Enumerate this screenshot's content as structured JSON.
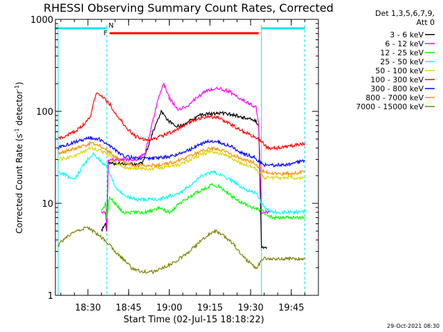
{
  "chart_data": {
    "type": "line",
    "title": "RHESSI Observing Summary Count Rates, Corrected",
    "xlabel": "Start Time (02-Jul-15 18:18:22)",
    "ylabel_main": "Corrected Count Rate (s",
    "ylabel_sup1": "-1",
    "ylabel_mid": " detector",
    "ylabel_sup2": "-1",
    "ylabel_end": ")",
    "y_scale": "log",
    "ylim": [
      1,
      1000
    ],
    "y_ticks": [
      {
        "value": 1,
        "label": "1"
      },
      {
        "value": 10,
        "label": "10"
      },
      {
        "value": 100,
        "label": "100"
      },
      {
        "value": 1000,
        "label": "1000"
      }
    ],
    "xlim": [
      "18:18",
      "19:55"
    ],
    "x_ticks": [
      "18:30",
      "18:45",
      "19:00",
      "19:15",
      "19:30",
      "19:45"
    ],
    "legend_header": [
      "Det 1,3,5,6,7,9,",
      "Att 0"
    ],
    "legend_placement": "right",
    "flags": [
      {
        "label": "N",
        "color": "#00e5ee",
        "segments": [
          [
            "18:18",
            "18:37"
          ],
          [
            "19:34",
            "19:50"
          ]
        ]
      },
      {
        "label": "F",
        "color": "#ff0000",
        "segments": [
          [
            "18:38",
            "19:33"
          ]
        ]
      }
    ],
    "vertical_markers": [
      {
        "time": "18:37",
        "style": "dashed",
        "color": "#00e5ee"
      },
      {
        "time": "19:34",
        "style": "solid",
        "color": "#00e5ee"
      },
      {
        "time": "19:50",
        "style": "dashed",
        "color": "#00e5ee"
      },
      {
        "time": "18:19",
        "style": "solid",
        "color": "#00e5ee"
      }
    ],
    "series": [
      {
        "name": "3 - 6 keV",
        "color": "#000000",
        "points": [
          [
            "18:35",
            5
          ],
          [
            "18:36.5",
            6
          ],
          [
            "18:37",
            5
          ],
          [
            "18:37.5",
            28
          ],
          [
            "18:40",
            27
          ],
          [
            "18:45",
            27
          ],
          [
            "18:50",
            27
          ],
          [
            "18:52",
            40
          ],
          [
            "18:54",
            60
          ],
          [
            "18:57",
            100
          ],
          [
            "19:00",
            78
          ],
          [
            "19:02",
            70
          ],
          [
            "19:05",
            70
          ],
          [
            "19:08",
            80
          ],
          [
            "19:12",
            92
          ],
          [
            "19:16",
            95
          ],
          [
            "19:20",
            95
          ],
          [
            "19:24",
            92
          ],
          [
            "19:28",
            85
          ],
          [
            "19:32",
            78
          ],
          [
            "19:33",
            70
          ],
          [
            "19:34",
            3.3
          ],
          [
            "19:36",
            3.3
          ]
        ]
      },
      {
        "name": "6 - 12 keV",
        "color": "#ff00ff",
        "points": [
          [
            "18:35",
            8
          ],
          [
            "18:36.5",
            8
          ],
          [
            "18:37",
            5
          ],
          [
            "18:37.5",
            30
          ],
          [
            "18:40",
            30
          ],
          [
            "18:44",
            30
          ],
          [
            "18:48",
            30
          ],
          [
            "18:51",
            35
          ],
          [
            "18:53",
            60
          ],
          [
            "18:56",
            140
          ],
          [
            "18:58",
            200
          ],
          [
            "19:00",
            140
          ],
          [
            "19:03",
            105
          ],
          [
            "19:06",
            110
          ],
          [
            "19:10",
            140
          ],
          [
            "19:14",
            170
          ],
          [
            "19:18",
            180
          ],
          [
            "19:22",
            165
          ],
          [
            "19:26",
            140
          ],
          [
            "19:30",
            120
          ],
          [
            "19:32",
            110
          ],
          [
            "19:33",
            70
          ],
          [
            "19:34",
            8
          ],
          [
            "19:37",
            8
          ]
        ]
      },
      {
        "name": "12 - 25 keV",
        "color": "#00ff00",
        "points": [
          [
            "18:35",
            8
          ],
          [
            "18:36.5",
            10
          ],
          [
            "18:37",
            7
          ],
          [
            "18:38",
            12
          ],
          [
            "18:40",
            10
          ],
          [
            "18:43",
            8
          ],
          [
            "18:47",
            8
          ],
          [
            "18:52",
            8
          ],
          [
            "18:56",
            9
          ],
          [
            "19:00",
            8
          ],
          [
            "19:04",
            10
          ],
          [
            "19:08",
            12
          ],
          [
            "19:12",
            14
          ],
          [
            "19:16",
            16
          ],
          [
            "19:19",
            15
          ],
          [
            "19:23",
            12
          ],
          [
            "19:27",
            10
          ],
          [
            "19:31",
            9
          ],
          [
            "19:35",
            8
          ],
          [
            "19:38",
            7
          ],
          [
            "19:42",
            7
          ],
          [
            "19:46",
            7
          ],
          [
            "19:50",
            7
          ]
        ]
      },
      {
        "name": "25 - 50 keV",
        "color": "#00ffff",
        "points": [
          [
            "18:19",
            22
          ],
          [
            "18:22",
            20
          ],
          [
            "18:25",
            18
          ],
          [
            "18:28",
            25
          ],
          [
            "18:30",
            30
          ],
          [
            "18:32",
            35
          ],
          [
            "18:34",
            30
          ],
          [
            "18:37",
            25
          ],
          [
            "18:39",
            18
          ],
          [
            "18:41",
            14
          ],
          [
            "18:44",
            12
          ],
          [
            "18:48",
            11
          ],
          [
            "18:52",
            11
          ],
          [
            "18:56",
            11
          ],
          [
            "19:00",
            12
          ],
          [
            "19:04",
            13
          ],
          [
            "19:08",
            16
          ],
          [
            "19:12",
            20
          ],
          [
            "19:16",
            22
          ],
          [
            "19:20",
            20
          ],
          [
            "19:24",
            17
          ],
          [
            "19:28",
            14
          ],
          [
            "19:32",
            13
          ],
          [
            "19:35",
            9
          ],
          [
            "19:38",
            8
          ],
          [
            "19:42",
            8
          ],
          [
            "19:46",
            8
          ],
          [
            "19:50",
            8
          ]
        ]
      },
      {
        "name": "50 - 100 keV",
        "color": "#d8d800",
        "points": [
          [
            "18:19",
            30
          ],
          [
            "18:22",
            31
          ],
          [
            "18:25",
            33
          ],
          [
            "18:28",
            36
          ],
          [
            "18:31",
            40
          ],
          [
            "18:34",
            38
          ],
          [
            "18:37",
            35
          ],
          [
            "18:40",
            28
          ],
          [
            "18:43",
            25
          ],
          [
            "18:47",
            24
          ],
          [
            "18:51",
            24
          ],
          [
            "18:55",
            24
          ],
          [
            "18:59",
            25
          ],
          [
            "19:03",
            26
          ],
          [
            "19:07",
            29
          ],
          [
            "19:11",
            33
          ],
          [
            "19:15",
            37
          ],
          [
            "19:19",
            35
          ],
          [
            "19:23",
            31
          ],
          [
            "19:27",
            27
          ],
          [
            "19:31",
            25
          ],
          [
            "19:35",
            19
          ],
          [
            "19:40",
            19
          ],
          [
            "19:45",
            19
          ],
          [
            "19:50",
            19
          ]
        ]
      },
      {
        "name": "100 - 300 keV",
        "color": "#ff0000",
        "points": [
          [
            "18:19",
            50
          ],
          [
            "18:22",
            55
          ],
          [
            "18:25",
            60
          ],
          [
            "18:28",
            70
          ],
          [
            "18:31",
            90
          ],
          [
            "18:33",
            160
          ],
          [
            "18:35",
            150
          ],
          [
            "18:38",
            120
          ],
          [
            "18:41",
            90
          ],
          [
            "18:44",
            68
          ],
          [
            "18:47",
            55
          ],
          [
            "18:50",
            50
          ],
          [
            "18:54",
            50
          ],
          [
            "18:58",
            55
          ],
          [
            "19:02",
            62
          ],
          [
            "19:06",
            72
          ],
          [
            "19:10",
            82
          ],
          [
            "19:14",
            88
          ],
          [
            "19:18",
            85
          ],
          [
            "19:22",
            75
          ],
          [
            "19:26",
            63
          ],
          [
            "19:30",
            55
          ],
          [
            "19:34",
            48
          ],
          [
            "19:36",
            40
          ],
          [
            "19:40",
            40
          ],
          [
            "19:45",
            42
          ],
          [
            "19:50",
            45
          ]
        ]
      },
      {
        "name": "300 - 800 keV",
        "color": "#0000ff",
        "points": [
          [
            "18:19",
            40
          ],
          [
            "18:22",
            43
          ],
          [
            "18:25",
            46
          ],
          [
            "18:28",
            49
          ],
          [
            "18:31",
            52
          ],
          [
            "18:34",
            50
          ],
          [
            "18:37",
            45
          ],
          [
            "18:40",
            38
          ],
          [
            "18:43",
            33
          ],
          [
            "18:47",
            31
          ],
          [
            "18:51",
            31
          ],
          [
            "18:55",
            31
          ],
          [
            "18:59",
            32
          ],
          [
            "19:03",
            34
          ],
          [
            "19:07",
            38
          ],
          [
            "19:11",
            43
          ],
          [
            "19:15",
            48
          ],
          [
            "19:19",
            46
          ],
          [
            "19:23",
            41
          ],
          [
            "19:27",
            35
          ],
          [
            "19:31",
            32
          ],
          [
            "19:35",
            26
          ],
          [
            "19:40",
            26
          ],
          [
            "19:45",
            27
          ],
          [
            "19:50",
            29
          ]
        ]
      },
      {
        "name": "800 - 7000 keV",
        "color": "#ff8c00",
        "points": [
          [
            "18:19",
            35
          ],
          [
            "18:22",
            37
          ],
          [
            "18:25",
            39
          ],
          [
            "18:28",
            42
          ],
          [
            "18:31",
            45
          ],
          [
            "18:34",
            43
          ],
          [
            "18:37",
            38
          ],
          [
            "18:40",
            32
          ],
          [
            "18:43",
            28
          ],
          [
            "18:47",
            26
          ],
          [
            "18:51",
            26
          ],
          [
            "18:55",
            26
          ],
          [
            "18:59",
            27
          ],
          [
            "19:03",
            29
          ],
          [
            "19:07",
            32
          ],
          [
            "19:11",
            36
          ],
          [
            "19:15",
            40
          ],
          [
            "19:19",
            38
          ],
          [
            "19:23",
            34
          ],
          [
            "19:27",
            30
          ],
          [
            "19:31",
            28
          ],
          [
            "19:35",
            22
          ],
          [
            "19:40",
            21
          ],
          [
            "19:45",
            21
          ],
          [
            "19:50",
            22
          ]
        ]
      },
      {
        "name": "7000 - 15000 keV",
        "color": "#808000",
        "points": [
          [
            "18:19",
            3.5
          ],
          [
            "18:21",
            4
          ],
          [
            "18:23",
            4.5
          ],
          [
            "18:26",
            5
          ],
          [
            "18:29",
            5.5
          ],
          [
            "18:32",
            5
          ],
          [
            "18:34",
            4.5
          ],
          [
            "18:36",
            4
          ],
          [
            "18:38",
            3.5
          ],
          [
            "18:40",
            3
          ],
          [
            "18:43",
            2.5
          ],
          [
            "18:46",
            2
          ],
          [
            "18:50",
            1.8
          ],
          [
            "18:54",
            1.8
          ],
          [
            "18:58",
            2
          ],
          [
            "19:02",
            2.3
          ],
          [
            "19:06",
            2.8
          ],
          [
            "19:10",
            3.5
          ],
          [
            "19:14",
            4.5
          ],
          [
            "19:17",
            5
          ],
          [
            "19:20",
            4.5
          ],
          [
            "19:24",
            3.5
          ],
          [
            "19:28",
            2.5
          ],
          [
            "19:32",
            2
          ],
          [
            "19:35",
            2.5
          ],
          [
            "19:40",
            2.5
          ],
          [
            "19:45",
            2.5
          ],
          [
            "19:50",
            2.5
          ]
        ]
      }
    ]
  },
  "footer_timestamp": "29-Oct-2021 08:30"
}
